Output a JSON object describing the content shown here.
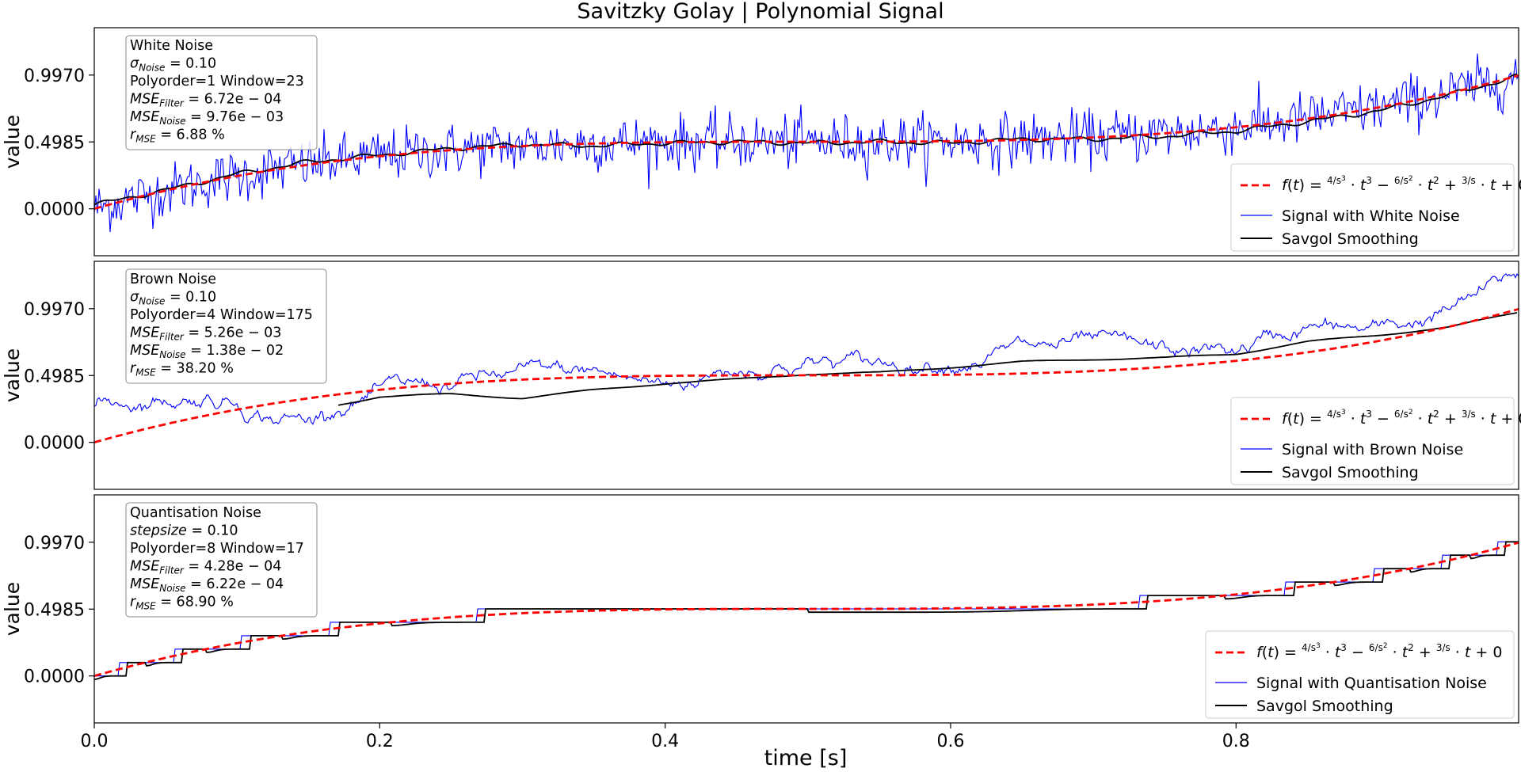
{
  "chart_data": {
    "type": "line",
    "title": "Savitzky Golay | Polynomial Signal",
    "xlabel": "time [s]",
    "ylabel": "value",
    "xlim": [
      0.0,
      0.998
    ],
    "ylim": [
      -0.35,
      1.35
    ],
    "x_ticks": [
      "0.0",
      "0.2",
      "0.4",
      "0.6",
      "0.8"
    ],
    "x_tick_values": [
      0.0,
      0.2,
      0.4,
      0.6,
      0.8
    ],
    "y_ticks": [
      "0.0000",
      "0.4985",
      "0.9970"
    ],
    "y_tick_values": [
      0.0,
      0.4985,
      0.997
    ],
    "legend_position": "lower right",
    "info_position": "upper left",
    "grid": false,
    "colors": {
      "function": "#ff0000",
      "noisy": "#0000ff",
      "smoothing": "#000000"
    },
    "function_legend": {
      "prefix": "f(t) = ",
      "t1": {
        "num": "4",
        "den": "s",
        "exp": "3",
        "var": "t",
        "pow": "3",
        "op": "−"
      },
      "t2": {
        "num": "6",
        "den": "s",
        "exp": "2",
        "var": "t",
        "pow": "2",
        "op": "+"
      },
      "t3": {
        "num": "3",
        "den": "s",
        "var": "t",
        "op": "+"
      },
      "tail": "0"
    },
    "panels": [
      {
        "noise_type": "white",
        "info": {
          "title": "White Noise",
          "param_main": "σ",
          "param_sub": "Noise",
          "param_value": "= 0.10",
          "polyorder": "Polyorder=1 Window=23",
          "mse_filter_main": "MSE",
          "mse_filter_sub": "Filter",
          "mse_filter_value": "= 6.72e − 04",
          "mse_noise_main": "MSE",
          "mse_noise_sub": "Noise",
          "mse_noise_value": "= 9.76e − 03",
          "r_main": "r",
          "r_sub": "MSE",
          "r_value": "= 6.88 %"
        },
        "legend": {
          "noisy": "Signal with White Noise",
          "smooth": "Savgol Smoothing"
        },
        "series": [
          {
            "name": "Signal with White Noise",
            "style": "solid",
            "x": [
              0,
              0.05,
              0.1,
              0.15,
              0.2,
              0.25,
              0.3,
              0.35,
              0.4,
              0.45,
              0.5,
              0.55,
              0.6,
              0.65,
              0.7,
              0.75,
              0.8,
              0.85,
              0.9,
              0.95,
              0.998
            ],
            "y": [
              0.0,
              0.18,
              0.3,
              0.38,
              0.42,
              0.45,
              0.48,
              0.49,
              0.5,
              0.5,
              0.5,
              0.5,
              0.5,
              0.51,
              0.52,
              0.55,
              0.6,
              0.66,
              0.75,
              0.86,
              0.98
            ]
          },
          {
            "name": "Savgol Smoothing",
            "style": "solid",
            "x": [
              0,
              0.05,
              0.1,
              0.15,
              0.2,
              0.25,
              0.3,
              0.35,
              0.4,
              0.45,
              0.5,
              0.55,
              0.6,
              0.65,
              0.7,
              0.75,
              0.8,
              0.85,
              0.9,
              0.95,
              0.998
            ],
            "y": [
              0.03,
              0.14,
              0.26,
              0.35,
              0.4,
              0.45,
              0.48,
              0.47,
              0.49,
              0.5,
              0.49,
              0.5,
              0.49,
              0.52,
              0.52,
              0.54,
              0.58,
              0.65,
              0.73,
              0.85,
              0.99
            ]
          }
        ]
      },
      {
        "noise_type": "brown",
        "info": {
          "title": "Brown Noise",
          "param_main": "σ",
          "param_sub": "Noise",
          "param_value": "= 0.10",
          "polyorder": "Polyorder=4 Window=175",
          "mse_filter_main": "MSE",
          "mse_filter_sub": "Filter",
          "mse_filter_value": "= 5.26e − 03",
          "mse_noise_main": "MSE",
          "mse_noise_sub": "Noise",
          "mse_noise_value": "= 1.38e − 02",
          "r_main": "r",
          "r_sub": "MSE",
          "r_value": "= 38.20 %"
        },
        "legend": {
          "noisy": "Signal with Brown Noise",
          "smooth": "Savgol Smoothing"
        },
        "series": [
          {
            "name": "Signal with Brown Noise",
            "style": "solid",
            "x": [
              0,
              0.02,
              0.05,
              0.08,
              0.1,
              0.12,
              0.15,
              0.17,
              0.2,
              0.25,
              0.3,
              0.35,
              0.38,
              0.4,
              0.45,
              0.5,
              0.55,
              0.6,
              0.65,
              0.7,
              0.75,
              0.8,
              0.85,
              0.9,
              0.95,
              0.998
            ],
            "y": [
              0.27,
              0.31,
              0.33,
              0.35,
              0.32,
              0.22,
              0.16,
              0.3,
              0.36,
              0.44,
              0.5,
              0.52,
              0.46,
              0.42,
              0.56,
              0.6,
              0.58,
              0.63,
              0.7,
              0.72,
              0.66,
              0.68,
              0.86,
              0.82,
              0.98,
              1.25
            ]
          },
          {
            "name": "Savgol Smoothing",
            "style": "solid",
            "x": [
              0.17,
              0.2,
              0.25,
              0.3,
              0.35,
              0.4,
              0.45,
              0.5,
              0.55,
              0.6,
              0.65,
              0.7,
              0.75,
              0.8,
              0.85,
              0.9,
              0.95,
              0.998
            ],
            "y": [
              0.28,
              0.34,
              0.36,
              0.33,
              0.39,
              0.44,
              0.47,
              0.51,
              0.52,
              0.56,
              0.6,
              0.62,
              0.63,
              0.66,
              0.75,
              0.8,
              0.86,
              0.97
            ]
          }
        ]
      },
      {
        "noise_type": "quantisation",
        "info": {
          "title": "Quantisation Noise",
          "param_main": "stepsize",
          "param_sub": "",
          "param_value": "= 0.10",
          "polyorder": "Polyorder=8 Window=17",
          "mse_filter_main": "MSE",
          "mse_filter_sub": "Filter",
          "mse_filter_value": "= 4.28e − 04",
          "mse_noise_main": "MSE",
          "mse_noise_sub": "Noise",
          "mse_noise_value": "= 6.22e − 04",
          "r_main": "r",
          "r_sub": "MSE",
          "r_value": "= 68.90 %"
        },
        "legend": {
          "noisy": "Signal with Quantisation Noise",
          "smooth": "Savgol Smoothing"
        },
        "series": [
          {
            "name": "Signal with Quantisation Noise",
            "style": "step",
            "step_size": 0.1,
            "steps": [
              0.0,
              0.1,
              0.2,
              0.3,
              0.4,
              0.5,
              0.6,
              0.7,
              0.8,
              0.9,
              1.0
            ]
          },
          {
            "name": "Savgol Smoothing",
            "style": "step-smoothed",
            "step_size": 0.1,
            "steps": [
              0.0,
              0.1,
              0.2,
              0.3,
              0.4,
              0.5,
              0.6,
              0.7,
              0.8,
              0.9,
              1.0
            ]
          }
        ]
      }
    ]
  }
}
